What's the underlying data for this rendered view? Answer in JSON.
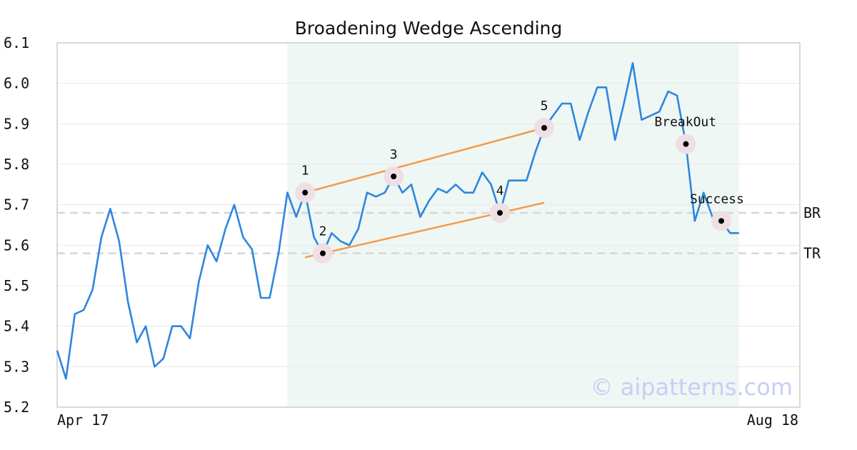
{
  "chart_data": {
    "type": "line",
    "title": "Broadening Wedge Ascending",
    "xlabel": "",
    "ylabel": "",
    "x_tick_labels": [
      "Apr 17",
      "Aug 18"
    ],
    "yticks": [
      "5.2",
      "5.3",
      "5.4",
      "5.5",
      "5.6",
      "5.7",
      "5.8",
      "5.9",
      "6.0",
      "6.1"
    ],
    "ylim": [
      5.2,
      6.1
    ],
    "grid": true,
    "series": [
      {
        "color": "#2e86de",
        "values": [
          5.34,
          5.27,
          5.43,
          5.44,
          5.49,
          5.62,
          5.69,
          5.61,
          5.46,
          5.36,
          5.4,
          5.3,
          5.32,
          5.4,
          5.4,
          5.37,
          5.51,
          5.6,
          5.56,
          5.64,
          5.7,
          5.62,
          5.59,
          5.47,
          5.47,
          5.58,
          5.73,
          5.67,
          5.73,
          5.62,
          5.58,
          5.63,
          5.61,
          5.6,
          5.64,
          5.73,
          5.72,
          5.73,
          5.77,
          5.73,
          5.75,
          5.67,
          5.71,
          5.74,
          5.73,
          5.75,
          5.73,
          5.73,
          5.78,
          5.75,
          5.68,
          5.76,
          5.76,
          5.76,
          5.83,
          5.89,
          5.92,
          5.95,
          5.95,
          5.86,
          5.93,
          5.99,
          5.99,
          5.86,
          5.95,
          6.05,
          5.91,
          5.92,
          5.93,
          5.98,
          5.97,
          5.85,
          5.66,
          5.73,
          5.67,
          5.66,
          5.63,
          5.63
        ]
      }
    ],
    "highlight_range": [
      26,
      77
    ],
    "reference_lines": [
      {
        "label": "BR",
        "value": 5.68
      },
      {
        "label": "TR",
        "value": 5.58
      }
    ],
    "trend_lines": [
      {
        "color": "#f5994a",
        "from": [
          28,
          5.73
        ],
        "to": [
          55,
          5.89
        ]
      },
      {
        "color": "#f5994a",
        "from": [
          28,
          5.57
        ],
        "to": [
          55,
          5.705
        ]
      }
    ],
    "points": [
      {
        "label": "1",
        "x": 28,
        "y": 5.73
      },
      {
        "label": "2",
        "x": 30,
        "y": 5.58
      },
      {
        "label": "3",
        "x": 38,
        "y": 5.77
      },
      {
        "label": "4",
        "x": 50,
        "y": 5.68
      },
      {
        "label": "5",
        "x": 55,
        "y": 5.89
      },
      {
        "label": "BreakOut",
        "x": 71,
        "y": 5.85
      },
      {
        "label": "Success",
        "x": 75,
        "y": 5.66
      }
    ],
    "watermark": "© aipatterns.com"
  }
}
